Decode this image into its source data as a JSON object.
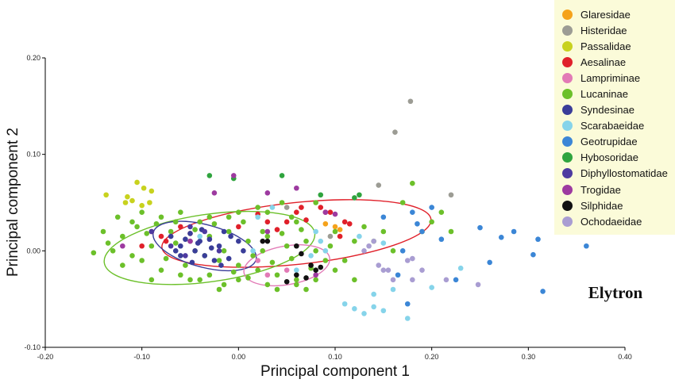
{
  "chart_data": {
    "type": "scatter",
    "xlabel": "Principal component 1",
    "ylabel": "Principal component 2",
    "xlim": [
      -0.2,
      0.4
    ],
    "ylim": [
      -0.1,
      0.2
    ],
    "x_ticks": [
      "-0.20",
      "-0.10",
      "0.00",
      "0.10",
      "0.20",
      "0.30",
      "0.40"
    ],
    "y_ticks": [
      "-0.10",
      "0.00",
      "0.10",
      "0.20"
    ],
    "annotation": "Elytron",
    "legend_position": "top-right",
    "series": [
      {
        "name": "Glaresidae",
        "color": "#f5a21b",
        "points": [
          [
            0.09,
            0.028
          ],
          [
            0.1,
            0.025
          ],
          [
            0.105,
            0.022
          ]
        ]
      },
      {
        "name": "Histeridae",
        "color": "#9c9c94",
        "points": [
          [
            0.178,
            0.155
          ],
          [
            0.162,
            0.123
          ],
          [
            0.145,
            0.068
          ],
          [
            0.22,
            0.058
          ],
          [
            0.05,
            0.045
          ],
          [
            0.095,
            0.015
          ]
        ]
      },
      {
        "name": "Passalidae",
        "color": "#c8d21e",
        "points": [
          [
            -0.105,
            0.071
          ],
          [
            -0.098,
            0.065
          ],
          [
            -0.09,
            0.062
          ],
          [
            -0.137,
            0.058
          ],
          [
            -0.115,
            0.056
          ],
          [
            -0.11,
            0.052
          ],
          [
            -0.092,
            0.05
          ],
          [
            -0.1,
            0.047
          ],
          [
            -0.117,
            0.05
          ]
        ]
      },
      {
        "name": "Aesalinae",
        "color": "#e0202a",
        "points": [
          [
            -0.09,
            0.02
          ],
          [
            -0.08,
            0.015
          ],
          [
            -0.075,
            0.01
          ],
          [
            -0.06,
            0.025
          ],
          [
            -0.05,
            0.018
          ],
          [
            0.0,
            0.025
          ],
          [
            0.04,
            0.022
          ],
          [
            0.06,
            0.04
          ],
          [
            0.065,
            0.045
          ],
          [
            0.085,
            0.045
          ],
          [
            0.09,
            0.04
          ],
          [
            0.095,
            0.04
          ],
          [
            0.105,
            0.015
          ],
          [
            0.11,
            0.03
          ],
          [
            0.115,
            0.028
          ],
          [
            0.07,
            0.032
          ],
          [
            0.05,
            0.03
          ],
          [
            -0.1,
            0.005
          ],
          [
            0.02,
            0.038
          ],
          [
            0.03,
            0.03
          ]
        ]
      },
      {
        "name": "Lampriminae",
        "color": "#e27ab6",
        "points": [
          [
            0.02,
            -0.01
          ],
          [
            0.05,
            -0.02
          ],
          [
            0.03,
            -0.025
          ]
        ]
      },
      {
        "name": "Lucaninae",
        "color": "#6cc02a",
        "points": [
          [
            -0.14,
            0.02
          ],
          [
            -0.13,
            0.0
          ],
          [
            -0.12,
            0.015
          ],
          [
            -0.11,
            0.03
          ],
          [
            -0.1,
            -0.01
          ],
          [
            -0.09,
            0.005
          ],
          [
            -0.08,
            -0.02
          ],
          [
            -0.07,
            0.02
          ],
          [
            -0.06,
            -0.025
          ],
          [
            -0.05,
            0.01
          ],
          [
            -0.04,
            -0.03
          ],
          [
            -0.03,
            0.015
          ],
          [
            -0.02,
            -0.01
          ],
          [
            -0.01,
            0.02
          ],
          [
            0.0,
            -0.015
          ],
          [
            0.01,
            0.01
          ],
          [
            0.02,
            -0.02
          ],
          [
            0.03,
            0.015
          ],
          [
            0.04,
            -0.025
          ],
          [
            0.05,
            0.005
          ],
          [
            0.06,
            -0.03
          ],
          [
            0.07,
            0.01
          ],
          [
            0.08,
            0.0
          ],
          [
            -0.125,
            0.035
          ],
          [
            -0.105,
            0.025
          ],
          [
            -0.095,
            0.018
          ],
          [
            -0.085,
            0.028
          ],
          [
            -0.075,
            -0.008
          ],
          [
            -0.065,
            0.008
          ],
          [
            -0.055,
            -0.015
          ],
          [
            -0.045,
            0.022
          ],
          [
            -0.035,
            -0.005
          ],
          [
            -0.025,
            0.028
          ],
          [
            -0.015,
            0.0
          ],
          [
            -0.005,
            -0.022
          ],
          [
            0.005,
            0.03
          ],
          [
            0.015,
            -0.005
          ],
          [
            0.025,
            0.02
          ],
          [
            0.035,
            -0.012
          ],
          [
            0.045,
            0.018
          ],
          [
            0.055,
            -0.008
          ],
          [
            0.065,
            0.022
          ],
          [
            0.075,
            -0.018
          ],
          [
            -0.15,
            -0.002
          ],
          [
            -0.135,
            0.008
          ],
          [
            -0.03,
            0.035
          ],
          [
            0.0,
            0.04
          ],
          [
            0.03,
            0.04
          ],
          [
            0.06,
            0.03
          ],
          [
            0.1,
            0.02
          ],
          [
            0.12,
            0.01
          ],
          [
            0.14,
            0.01
          ],
          [
            0.16,
            0.0
          ],
          [
            0.17,
            0.05
          ],
          [
            0.18,
            0.07
          ],
          [
            0.2,
            0.03
          ],
          [
            0.22,
            0.02
          ],
          [
            0.12,
            -0.03
          ],
          [
            0.1,
            -0.02
          ],
          [
            0.08,
            -0.03
          ],
          [
            -0.02,
            -0.04
          ],
          [
            0.04,
            -0.04
          ],
          [
            0.06,
            -0.035
          ],
          [
            -0.05,
            -0.03
          ],
          [
            -0.09,
            -0.03
          ],
          [
            -0.12,
            -0.015
          ],
          [
            -0.04,
            0.03
          ],
          [
            -0.01,
            0.035
          ],
          [
            0.02,
            0.045
          ],
          [
            0.045,
            0.05
          ],
          [
            0.08,
            0.05
          ],
          [
            0.09,
            -0.01
          ],
          [
            0.11,
            -0.01
          ],
          [
            0.13,
            0.025
          ],
          [
            0.15,
            0.02
          ],
          [
            0.19,
            0.02
          ],
          [
            0.21,
            0.04
          ],
          [
            -0.1,
            0.04
          ],
          [
            -0.06,
            0.04
          ],
          [
            0.0,
            -0.03
          ],
          [
            -0.03,
            -0.025
          ],
          [
            0.03,
            -0.035
          ],
          [
            0.07,
            -0.04
          ],
          [
            -0.08,
            0.035
          ],
          [
            -0.11,
            -0.005
          ],
          [
            0.01,
            -0.028
          ],
          [
            -0.065,
            0.03
          ],
          [
            0.095,
            0.005
          ],
          [
            0.055,
            0.035
          ],
          [
            -0.015,
            -0.035
          ],
          [
            0.025,
            0.0
          ],
          [
            -0.045,
            0.0
          ]
        ]
      },
      {
        "name": "Syndesinae",
        "color": "#3a3d99",
        "points": [
          [
            -0.07,
            0.015
          ],
          [
            -0.06,
            0.005
          ],
          [
            -0.05,
            0.018
          ],
          [
            -0.045,
            0.0
          ],
          [
            -0.04,
            0.01
          ],
          [
            -0.035,
            -0.005
          ],
          [
            -0.03,
            0.012
          ],
          [
            -0.025,
            -0.01
          ],
          [
            -0.02,
            0.005
          ],
          [
            -0.015,
            0.02
          ],
          [
            -0.01,
            -0.008
          ],
          [
            0.0,
            0.01
          ],
          [
            -0.055,
            0.012
          ],
          [
            -0.065,
            0.0
          ],
          [
            -0.048,
            -0.012
          ],
          [
            -0.038,
            0.022
          ],
          [
            -0.028,
            0.003
          ],
          [
            -0.018,
            -0.015
          ],
          [
            -0.008,
            0.015
          ],
          [
            0.005,
            0.0
          ],
          [
            -0.06,
            -0.005
          ],
          [
            -0.042,
            0.008
          ]
        ]
      },
      {
        "name": "Scarabaeidae",
        "color": "#86d4ea",
        "points": [
          [
            0.11,
            -0.055
          ],
          [
            0.12,
            -0.06
          ],
          [
            0.13,
            -0.065
          ],
          [
            0.14,
            -0.058
          ],
          [
            0.15,
            -0.062
          ],
          [
            0.175,
            -0.07
          ],
          [
            0.2,
            -0.038
          ],
          [
            0.23,
            -0.018
          ],
          [
            0.16,
            -0.04
          ],
          [
            0.14,
            -0.045
          ],
          [
            0.08,
            0.02
          ],
          [
            0.085,
            0.01
          ],
          [
            0.09,
            0.0
          ],
          [
            0.015,
            0.0
          ],
          [
            0.02,
            0.035
          ],
          [
            -0.04,
            0.015
          ],
          [
            0.035,
            0.045
          ],
          [
            0.06,
            -0.02
          ],
          [
            0.075,
            -0.005
          ],
          [
            0.125,
            0.015
          ],
          [
            0.15,
            0.008
          ]
        ]
      },
      {
        "name": "Geotrupidae",
        "color": "#3b86d6",
        "points": [
          [
            0.36,
            0.005
          ],
          [
            0.31,
            0.012
          ],
          [
            0.305,
            -0.004
          ],
          [
            0.285,
            0.02
          ],
          [
            0.272,
            0.014
          ],
          [
            0.25,
            0.024
          ],
          [
            0.315,
            -0.042
          ],
          [
            0.19,
            0.02
          ],
          [
            0.21,
            0.012
          ],
          [
            0.18,
            0.04
          ],
          [
            0.2,
            0.045
          ],
          [
            0.175,
            -0.055
          ],
          [
            0.225,
            -0.03
          ],
          [
            0.26,
            -0.012
          ],
          [
            0.15,
            0.035
          ],
          [
            0.17,
            0.0
          ],
          [
            0.165,
            -0.025
          ],
          [
            0.185,
            0.028
          ]
        ]
      },
      {
        "name": "Hybosoridae",
        "color": "#2fa43e",
        "points": [
          [
            -0.03,
            0.078
          ],
          [
            -0.005,
            0.075
          ],
          [
            0.045,
            0.078
          ],
          [
            0.085,
            0.058
          ],
          [
            0.12,
            0.055
          ],
          [
            0.125,
            0.058
          ]
        ]
      },
      {
        "name": "Diphyllostomatidae",
        "color": "#4d3aa0",
        "points": [
          [
            -0.09,
            0.02
          ],
          [
            -0.07,
            0.005
          ],
          [
            -0.055,
            -0.005
          ],
          [
            -0.035,
            0.02
          ],
          [
            -0.02,
            0.0
          ],
          [
            -0.05,
            0.025
          ]
        ]
      },
      {
        "name": "Trogidae",
        "color": "#9d3aa0",
        "points": [
          [
            -0.12,
            0.005
          ],
          [
            -0.025,
            0.06
          ],
          [
            -0.005,
            0.078
          ],
          [
            0.03,
            0.06
          ],
          [
            0.06,
            0.065
          ],
          [
            0.09,
            0.04
          ],
          [
            0.1,
            0.038
          ],
          [
            0.08,
            -0.025
          ],
          [
            -0.05,
            0.01
          ],
          [
            0.03,
            0.02
          ]
        ]
      },
      {
        "name": "Silphidae",
        "color": "#111111",
        "points": [
          [
            0.025,
            0.01
          ],
          [
            0.03,
            0.01
          ],
          [
            0.06,
            0.005
          ],
          [
            0.065,
            -0.003
          ],
          [
            0.075,
            -0.015
          ],
          [
            0.08,
            -0.02
          ],
          [
            0.085,
            -0.017
          ],
          [
            0.07,
            -0.028
          ],
          [
            0.06,
            -0.025
          ],
          [
            0.05,
            -0.032
          ]
        ]
      },
      {
        "name": "Ochodaeidae",
        "color": "#a99dd2",
        "points": [
          [
            0.13,
            0.0
          ],
          [
            0.135,
            0.005
          ],
          [
            0.14,
            0.01
          ],
          [
            0.145,
            -0.015
          ],
          [
            0.15,
            -0.02
          ],
          [
            0.16,
            -0.03
          ],
          [
            0.175,
            -0.01
          ],
          [
            0.18,
            -0.008
          ],
          [
            0.215,
            -0.03
          ],
          [
            0.248,
            -0.035
          ],
          [
            0.18,
            -0.03
          ],
          [
            0.155,
            -0.02
          ],
          [
            0.19,
            -0.02
          ]
        ]
      }
    ],
    "ellipses": [
      {
        "color": "#e0202a",
        "cx": 0.06,
        "cy": 0.018,
        "rx": 0.14,
        "ry": 0.032,
        "angle_deg": 6
      },
      {
        "color": "#6cc02a",
        "cx": -0.03,
        "cy": 0.003,
        "rx": 0.11,
        "ry": 0.035,
        "angle_deg": 8
      },
      {
        "color": "#3a3d99",
        "cx": -0.035,
        "cy": 0.005,
        "rx": 0.055,
        "ry": 0.022,
        "angle_deg": -15
      },
      {
        "color": "#e27ab6",
        "cx": 0.05,
        "cy": -0.015,
        "rx": 0.045,
        "ry": 0.02,
        "angle_deg": 10
      }
    ]
  }
}
